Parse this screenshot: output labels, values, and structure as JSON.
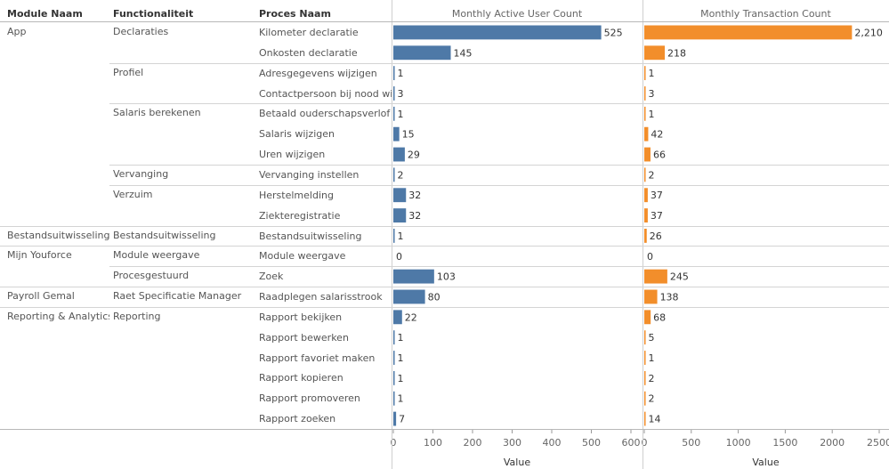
{
  "headers": {
    "module": "Module Naam",
    "functionaliteit": "Functionaliteit",
    "proces": "Proces Naam"
  },
  "axis_title": "Value",
  "colors": {
    "users": "#4e79a7",
    "transactions": "#f28e2b"
  },
  "chart_data": [
    {
      "type": "bar",
      "orientation": "horizontal",
      "title": "Monthly Active User Count",
      "xlabel": "Value",
      "xlim": [
        0,
        600
      ],
      "ticks": [
        0,
        100,
        200,
        300,
        400,
        500,
        600
      ],
      "tick_labels": [
        "0",
        "100",
        "200",
        "300",
        "400",
        "500",
        "600"
      ],
      "categories": [
        "Kilometer declaratie",
        "Onkosten declaratie",
        "Adresgegevens wijzigen",
        "Contactpersoon bij nood wijzi..",
        "Betaald ouderschapsverlof",
        "Salaris wijzigen",
        "Uren wijzigen",
        "Vervanging instellen",
        "Herstelmelding",
        "Ziekteregistratie",
        "Bestandsuitwisseling",
        "Module weergave",
        "Zoek",
        "Raadplegen salarisstrook",
        "Rapport bekijken",
        "Rapport bewerken",
        "Rapport favoriet maken",
        "Rapport kopieren",
        "Rapport promoveren",
        "Rapport zoeken"
      ],
      "values": [
        525,
        145,
        1,
        3,
        1,
        15,
        29,
        2,
        32,
        32,
        1,
        0,
        103,
        80,
        22,
        1,
        1,
        1,
        1,
        7
      ],
      "labels": [
        "525",
        "145",
        "1",
        "3",
        "1",
        "15",
        "29",
        "2",
        "32",
        "32",
        "1",
        "0",
        "103",
        "80",
        "22",
        "1",
        "1",
        "1",
        "1",
        "7"
      ],
      "color": "#4e79a7"
    },
    {
      "type": "bar",
      "orientation": "horizontal",
      "title": "Monthly Transaction Count",
      "xlabel": "Value",
      "xlim": [
        0,
        2500
      ],
      "ticks": [
        0,
        500,
        1000,
        1500,
        2000,
        2500
      ],
      "tick_labels": [
        "0",
        "500",
        "1000",
        "1500",
        "2000",
        "2500"
      ],
      "categories": [
        "Kilometer declaratie",
        "Onkosten declaratie",
        "Adresgegevens wijzigen",
        "Contactpersoon bij nood wijzi..",
        "Betaald ouderschapsverlof",
        "Salaris wijzigen",
        "Uren wijzigen",
        "Vervanging instellen",
        "Herstelmelding",
        "Ziekteregistratie",
        "Bestandsuitwisseling",
        "Module weergave",
        "Zoek",
        "Raadplegen salarisstrook",
        "Rapport bekijken",
        "Rapport bewerken",
        "Rapport favoriet maken",
        "Rapport kopieren",
        "Rapport promoveren",
        "Rapport zoeken"
      ],
      "values": [
        2210,
        218,
        1,
        3,
        1,
        42,
        66,
        2,
        37,
        37,
        26,
        0,
        245,
        138,
        68,
        5,
        1,
        2,
        2,
        14
      ],
      "labels": [
        "2,210",
        "218",
        "1",
        "3",
        "1",
        "42",
        "66",
        "2",
        "37",
        "37",
        "26",
        "0",
        "245",
        "138",
        "68",
        "5",
        "1",
        "2",
        "2",
        "14"
      ],
      "color": "#f28e2b"
    }
  ],
  "modules": [
    {
      "label": "App",
      "start": 0,
      "span": 10
    },
    {
      "label": "Bestandsuitwisseling",
      "start": 10,
      "span": 1
    },
    {
      "label": "Mijn Youforce",
      "start": 11,
      "span": 2
    },
    {
      "label": "Payroll Gemal",
      "start": 13,
      "span": 1
    },
    {
      "label": "Reporting & Analytics",
      "start": 14,
      "span": 6
    }
  ],
  "functions": [
    {
      "label": "Declaraties",
      "start": 0,
      "span": 2
    },
    {
      "label": "Profiel",
      "start": 2,
      "span": 2
    },
    {
      "label": "Salaris berekenen",
      "start": 4,
      "span": 3
    },
    {
      "label": "Vervanging",
      "start": 7,
      "span": 1
    },
    {
      "label": "Verzuim",
      "start": 8,
      "span": 2
    },
    {
      "label": "Bestandsuitwisseling",
      "start": 10,
      "span": 1
    },
    {
      "label": "Module weergave",
      "start": 11,
      "span": 1
    },
    {
      "label": "Procesgestuurd",
      "start": 12,
      "span": 1
    },
    {
      "label": "Raet Specificatie Manager",
      "start": 13,
      "span": 1
    },
    {
      "label": "Reporting",
      "start": 14,
      "span": 6
    }
  ]
}
